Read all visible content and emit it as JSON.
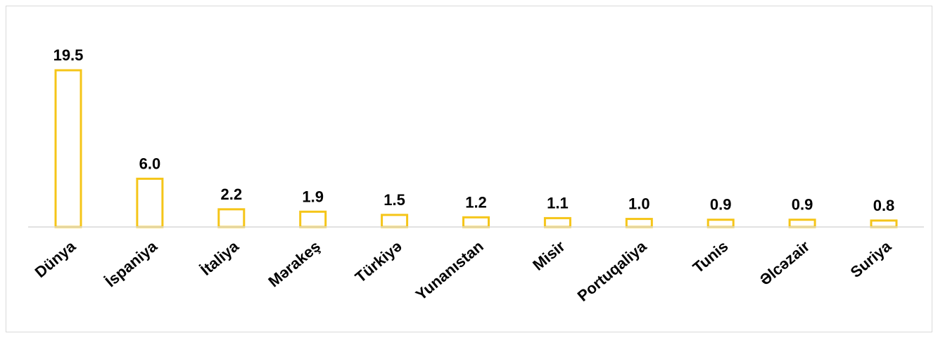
{
  "chart_data": {
    "type": "bar",
    "title": "",
    "xlabel": "",
    "ylabel": "",
    "categories": [
      "Dünya",
      "İspaniya",
      "İtaliya",
      "Mərakeş",
      "Türkiyə",
      "Yunanıstan",
      "Misir",
      "Portuqaliya",
      "Tunis",
      "Əlcəzair",
      "Suriya"
    ],
    "values": [
      19.5,
      6.0,
      2.2,
      1.9,
      1.5,
      1.2,
      1.1,
      1.0,
      0.9,
      0.9,
      0.8
    ],
    "value_labels": [
      "19.5",
      "6.0",
      "2.2",
      "1.9",
      "1.5",
      "1.2",
      "1.1",
      "1.0",
      "0.9",
      "0.9",
      "0.8"
    ],
    "ylim": [
      0,
      19.5
    ],
    "grid": false,
    "legend": "none",
    "colors": {
      "bar_stroke": "#f5c518",
      "bar_fill": "#ffffff",
      "axis": "#d9d9d9"
    }
  }
}
